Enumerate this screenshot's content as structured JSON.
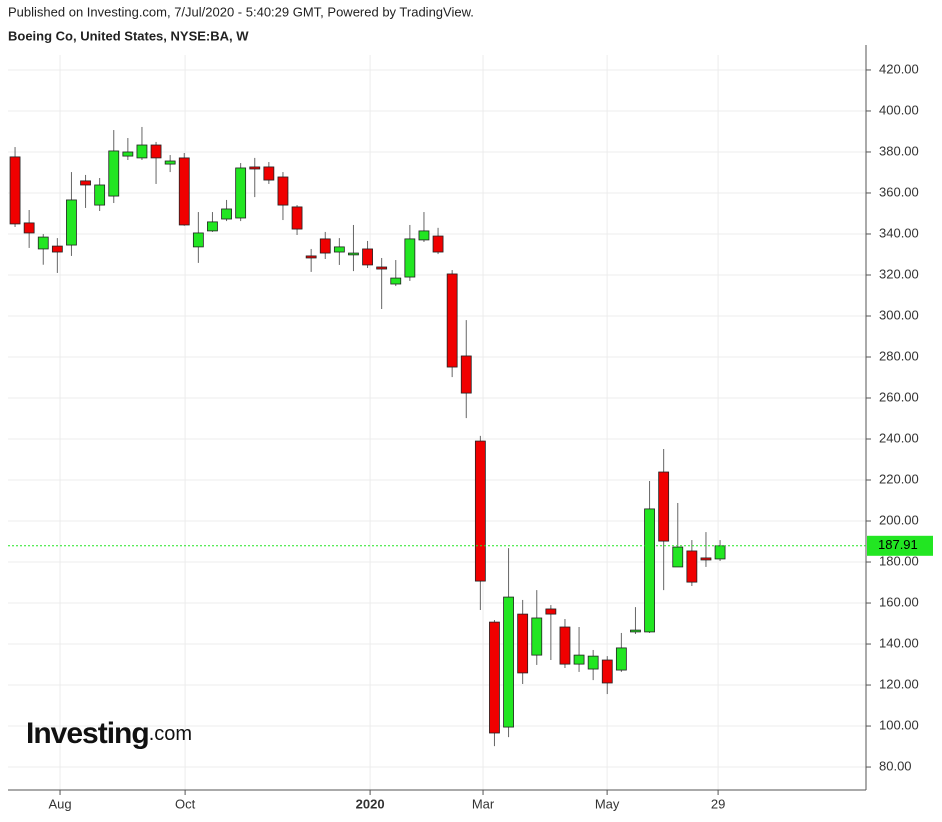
{
  "header": {
    "published": "Published on Investing.com, 7/Jul/2020 - 5:40:29 GMT, Powered by TradingView.",
    "symbol": "Boeing Co, United States, NYSE:BA, W"
  },
  "logo": {
    "brand": "Investing",
    "suffix": ".com"
  },
  "chart_data": {
    "type": "candlestick",
    "categories": [
      null,
      null,
      null,
      null,
      null,
      null,
      null,
      null,
      null,
      null,
      null,
      null,
      null,
      null,
      null,
      null,
      null,
      null,
      null,
      null,
      null,
      null,
      null,
      null,
      null,
      null,
      null,
      null,
      null,
      null,
      null,
      null,
      null,
      null,
      null,
      null,
      null,
      null,
      null,
      null,
      null,
      null,
      null,
      null,
      null,
      null,
      null,
      null,
      null,
      null,
      null
    ],
    "series": [
      {
        "up_color": "#22e622",
        "down_color": "#f00000",
        "open": [
          377.6,
          345.4,
          332.7,
          334.1,
          334.6,
          365.9,
          354.1,
          358.5,
          378,
          377.1,
          383.4,
          374.1,
          377.1,
          333.7,
          341.5,
          347.3,
          347.8,
          372.7,
          372.7,
          367.8,
          353.2,
          329.3,
          337.6,
          331.2,
          329.8,
          332.7,
          323.9,
          315.6,
          319,
          337.1,
          339,
          320.5,
          280.5,
          239,
          150.7,
          99.5,
          154.6,
          134.6,
          157.1,
          148.3,
          130.2,
          127.8,
          132.2,
          127.3,
          145.9,
          145.9,
          223.9,
          177.6,
          185.4,
          182,
          181.5
        ],
        "high": [
          382.4,
          351.7,
          340,
          338,
          370.2,
          368.8,
          367.3,
          390.7,
          386.8,
          392.2,
          384.9,
          378.5,
          379.5,
          350.7,
          350.7,
          356.6,
          374.6,
          377.1,
          375.1,
          370.2,
          354.1,
          332.7,
          341,
          338,
          344.4,
          336.6,
          328.3,
          327.3,
          344.4,
          350.7,
          343,
          322.4,
          298,
          241.5,
          151.7,
          186.8,
          161.5,
          166.3,
          159,
          152.2,
          148.3,
          137.1,
          134.1,
          145.4,
          158,
          219.5,
          235.1,
          208.8,
          190.7,
          194.6,
          190.7
        ],
        "low": [
          343.4,
          333.2,
          325,
          321,
          329.3,
          352.7,
          351.2,
          355.1,
          376.1,
          376.1,
          364.4,
          370.2,
          344,
          325.9,
          341,
          346.3,
          346.3,
          358,
          364.4,
          346.8,
          339.5,
          321.5,
          327.8,
          324.9,
          321.9,
          323.4,
          303.4,
          314.6,
          317.1,
          336.1,
          330.2,
          270.2,
          250.2,
          156.6,
          90.2,
          94.6,
          120.5,
          129.8,
          132.2,
          128.3,
          126.4,
          122.4,
          115.6,
          126.4,
          144.9,
          145.4,
          166.3,
          177.6,
          168.3,
          177.6,
          180.5
        ],
        "close": [
          344.9,
          340.5,
          338.5,
          331.2,
          356.6,
          363.9,
          363.9,
          380.5,
          380,
          383.4,
          377.1,
          375.6,
          344.4,
          340.5,
          345.9,
          352.2,
          372.2,
          371.7,
          366.3,
          354.1,
          342.4,
          328.3,
          330.7,
          333.7,
          330.7,
          324.9,
          322.9,
          318.5,
          337.6,
          341.5,
          331.2,
          275.1,
          262.4,
          170.7,
          96.6,
          162.9,
          125.9,
          152.7,
          154.6,
          130.2,
          134.6,
          134.1,
          121,
          138.1,
          146.8,
          205.9,
          190.2,
          187.3,
          170.2,
          181,
          187.91
        ]
      }
    ],
    "last_price": 187.91,
    "last_price_color": "#22e622",
    "xlim": [
      -0.5,
      60.35
    ],
    "xticks": [
      {
        "value": 3.19,
        "label": "Aug"
      },
      {
        "value": 12.06,
        "label": "Oct"
      },
      {
        "value": 25.18,
        "label": "2020"
      },
      {
        "value": 33.19,
        "label": "Mar"
      },
      {
        "value": 41.99,
        "label": "May"
      },
      {
        "value": 49.86,
        "label": "29"
      }
    ],
    "ylim": [
      68.8,
      427.3
    ],
    "yticks": [
      {
        "value": 80,
        "label": "80.00"
      },
      {
        "value": 100,
        "label": "100.00"
      },
      {
        "value": 120,
        "label": "120.00"
      },
      {
        "value": 140,
        "label": "140.00"
      },
      {
        "value": 160,
        "label": "160.00"
      },
      {
        "value": 180,
        "label": "180.00"
      },
      {
        "value": 200,
        "label": "200.00"
      },
      {
        "value": 220,
        "label": "220.00"
      },
      {
        "value": 240,
        "label": "240.00"
      },
      {
        "value": 260,
        "label": "260.00"
      },
      {
        "value": 280,
        "label": "280.00"
      },
      {
        "value": 300,
        "label": "300.00"
      },
      {
        "value": 320,
        "label": "320.00"
      },
      {
        "value": 340,
        "label": "340.00"
      },
      {
        "value": 360,
        "label": "360.00"
      },
      {
        "value": 380,
        "label": "380.00"
      },
      {
        "value": 400,
        "label": "400.00"
      },
      {
        "value": 420,
        "label": "420.00"
      }
    ],
    "grid": true
  }
}
